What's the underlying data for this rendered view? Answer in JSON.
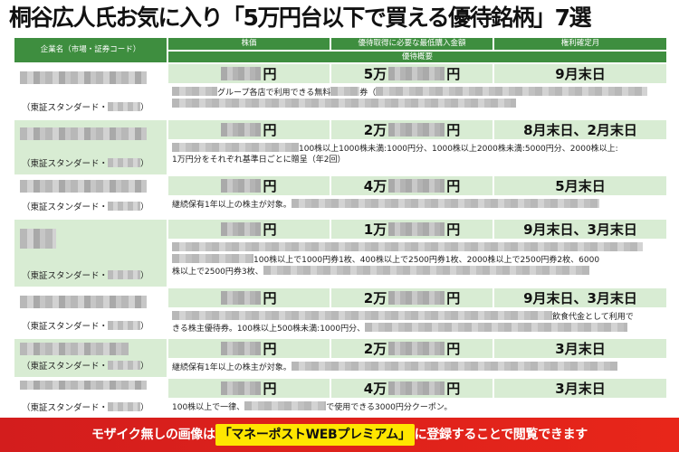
{
  "title": "桐谷広人氏お気に入り「5万円台以下で買える優待銘柄」7選",
  "header": {
    "company": "企業名（市場・証券コード）",
    "price": "株価",
    "min_amount": "優待取得に必要な最低購入金額",
    "record_month": "権利確定月",
    "summary": "優待概要"
  },
  "rows": [
    {
      "market": "（東証スタンダード・",
      "price_suffix": "円",
      "min_prefix": "5万",
      "min_suffix": "円",
      "month": "9月末日",
      "desc_a": "グループ各店で利用できる無料",
      "desc_b": "券（",
      "desc_c": ""
    },
    {
      "market": "（東証スタンダード・",
      "price_suffix": "円",
      "min_prefix": "2万",
      "min_suffix": "円",
      "month": "8月末日、2月末日",
      "desc_a": "100株以上1000株未満:1000円分、1000株以上2000株未満:5000円分、2000株以上:",
      "desc_b": "1万円分をそれぞれ基準日ごとに贈呈（年2回）",
      "desc_c": ""
    },
    {
      "market": "（東証スタンダード・",
      "price_suffix": "円",
      "min_prefix": "4万",
      "min_suffix": "円",
      "month": "5月末日",
      "desc_a": "継続保有1年以上の株主が対象。",
      "desc_b": "",
      "desc_c": ""
    },
    {
      "market": "（東証スタンダード・",
      "price_suffix": "円",
      "min_prefix": "1万",
      "min_suffix": "円",
      "month": "9月末日、3月末日",
      "desc_a": "100株以上で1000円券1枚、400株以上で2500円券1枚、2000株以上で2500円券2枚、6000",
      "desc_b": "株以上で2500円券3枚、",
      "desc_c": ""
    },
    {
      "market": "（東証スタンダード・",
      "price_suffix": "円",
      "min_prefix": "2万",
      "min_suffix": "円",
      "month": "9月末日、3月末日",
      "desc_a": "飲食代金として利用で",
      "desc_b": "きる株主優待券。100株以上500株未満:1000円分、",
      "desc_c": ""
    },
    {
      "market": "（東証スタンダード・",
      "price_suffix": "円",
      "min_prefix": "2万",
      "min_suffix": "円",
      "month": "3月末日",
      "desc_a": "継続保有1年以上の株主が対象。",
      "desc_b": "",
      "desc_c": ""
    },
    {
      "market": "（東証スタンダード・",
      "price_suffix": "円",
      "min_prefix": "4万",
      "min_suffix": "円",
      "month": "3月末日",
      "desc_a": "100株以上で一律、",
      "desc_b": "で使用できる3000円分クーポン。",
      "desc_c": ""
    }
  ],
  "banner": {
    "pre": "モザイク無しの画像は",
    "highlight": "「マネーポストWEBプレミアム」",
    "post": "に登録することで閲覧できます"
  }
}
